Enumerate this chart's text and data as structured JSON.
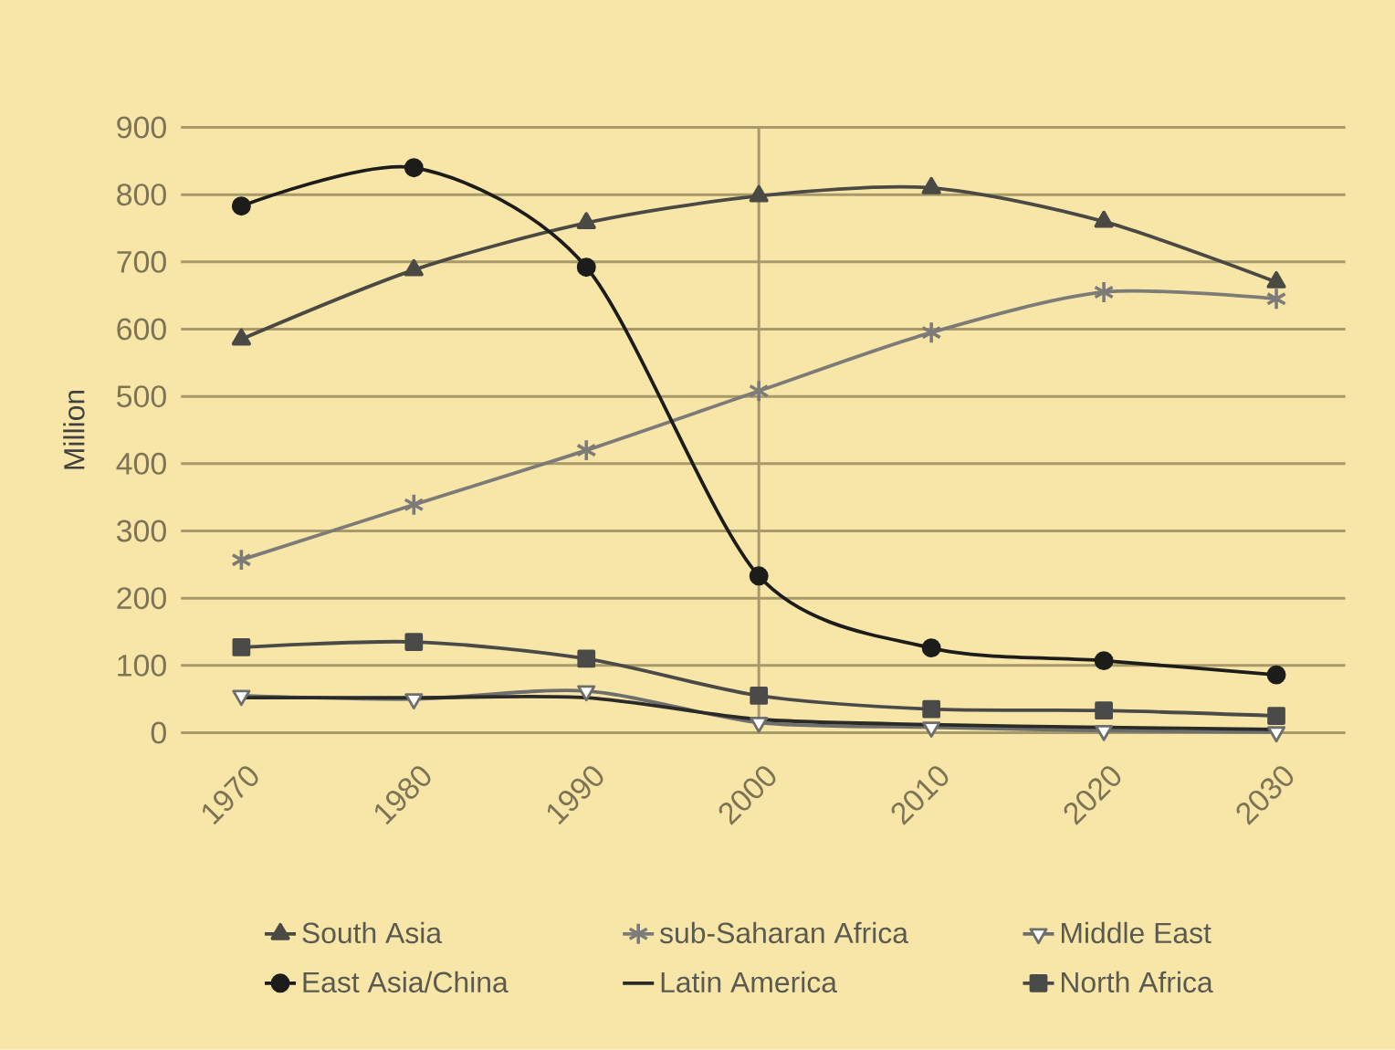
{
  "chart_data": {
    "type": "line",
    "ylabel": "Million",
    "x": [
      1970,
      1980,
      1990,
      2000,
      2010,
      2020,
      2030
    ],
    "xlim": [
      1966.5,
      2034
    ],
    "xticks": [
      1970,
      1980,
      1990,
      2000,
      2010,
      2020,
      2030
    ],
    "ylim": [
      0,
      900
    ],
    "yticks": [
      0,
      100,
      200,
      300,
      400,
      500,
      600,
      700,
      800,
      900
    ],
    "grid": "y",
    "legend": "bottom",
    "ref_lines": [
      {
        "axis": "x",
        "value": 2000,
        "color": "#a8996b"
      }
    ],
    "series": [
      {
        "name": "South Asia",
        "color": "#4a4944",
        "marker": "triangle",
        "values": [
          585,
          688,
          758,
          798,
          810,
          760,
          670
        ]
      },
      {
        "name": "sub-Saharan Africa",
        "color": "#7c7b78",
        "marker": "cross",
        "values": [
          257,
          339,
          420,
          508,
          595,
          655,
          645
        ]
      },
      {
        "name": "Middle East",
        "color": "#6e6e6c",
        "marker": "triangle-down",
        "values": [
          55,
          50,
          62,
          15,
          8,
          3,
          1
        ]
      },
      {
        "name": "East Asia/China",
        "color": "#1c1c1a",
        "marker": "circle",
        "values": [
          783,
          840,
          692,
          233,
          126,
          107,
          86
        ]
      },
      {
        "name": "Latin America",
        "color": "#2a2a28",
        "marker": "none",
        "values": [
          52,
          52,
          52,
          20,
          12,
          8,
          5
        ]
      },
      {
        "name": "North Africa",
        "color": "#4a4a48",
        "marker": "square",
        "values": [
          127,
          135,
          110,
          55,
          35,
          33,
          25
        ]
      }
    ]
  }
}
